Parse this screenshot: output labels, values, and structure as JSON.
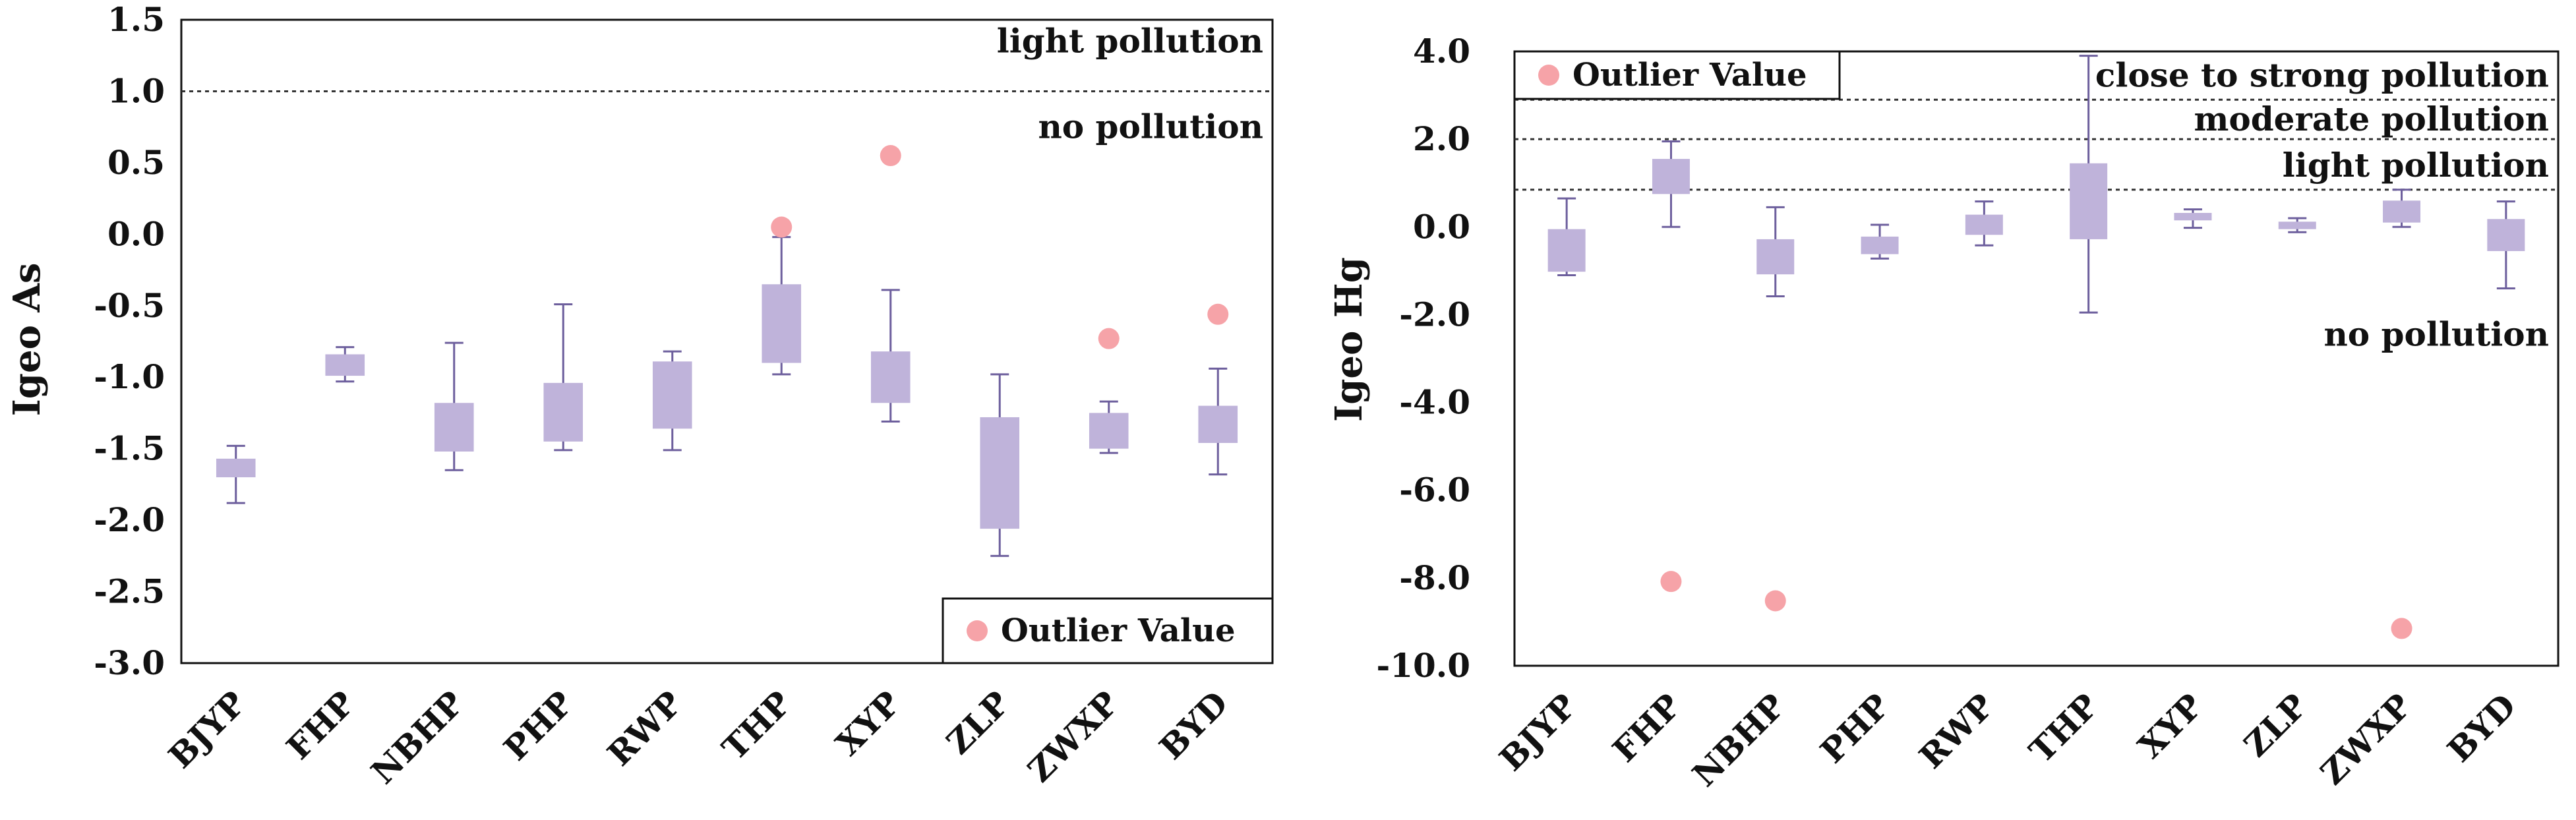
{
  "colors": {
    "box": "#bfb3da",
    "whisker": "#6d5f9d",
    "outlier": "#f6a3a8",
    "frame": "#111111",
    "threshold": "#333333"
  },
  "chart_data": [
    {
      "type": "box",
      "ylabel": "Igeo  As",
      "ylim": [
        -3.0,
        1.5
      ],
      "yticks": [
        "1.5",
        "1.0",
        "0.5",
        "0.0",
        "-0.5",
        "-1.0",
        "-1.5",
        "-2.0",
        "-2.5",
        "-3.0"
      ],
      "ytick_values": [
        1.5,
        1.0,
        0.5,
        0.0,
        -0.5,
        -1.0,
        -1.5,
        -2.0,
        -2.5,
        -3.0
      ],
      "categories": [
        "BJYP",
        "FHP",
        "NBHP",
        "PHP",
        "RWP",
        "THP",
        "XYP",
        "ZLP",
        "ZWXP",
        "BYD"
      ],
      "boxes": [
        {
          "whisker_low": -1.88,
          "q1": -1.7,
          "q3": -1.57,
          "whisker_high": -1.48
        },
        {
          "whisker_low": -1.03,
          "q1": -0.99,
          "q3": -0.84,
          "whisker_high": -0.79
        },
        {
          "whisker_low": -1.65,
          "q1": -1.52,
          "q3": -1.18,
          "whisker_high": -0.76
        },
        {
          "whisker_low": -1.51,
          "q1": -1.45,
          "q3": -1.04,
          "whisker_high": -0.49
        },
        {
          "whisker_low": -1.51,
          "q1": -1.36,
          "q3": -0.89,
          "whisker_high": -0.82
        },
        {
          "whisker_low": -0.98,
          "q1": -0.9,
          "q3": -0.35,
          "whisker_high": -0.02
        },
        {
          "whisker_low": -1.31,
          "q1": -1.18,
          "q3": -0.82,
          "whisker_high": -0.39
        },
        {
          "whisker_low": -2.25,
          "q1": -2.06,
          "q3": -1.28,
          "whisker_high": -0.98
        },
        {
          "whisker_low": -1.53,
          "q1": -1.5,
          "q3": -1.25,
          "whisker_high": -1.17
        },
        {
          "whisker_low": -1.68,
          "q1": -1.46,
          "q3": -1.2,
          "whisker_high": -0.94
        }
      ],
      "outliers": [
        {
          "category": "THP",
          "value": 0.05
        },
        {
          "category": "XYP",
          "value": 0.55
        },
        {
          "category": "ZWXP",
          "value": -0.73
        },
        {
          "category": "BYD",
          "value": -0.56
        }
      ],
      "thresholds": [
        {
          "value": 1.0
        }
      ],
      "zone_labels": [
        {
          "text": "light pollution",
          "value": 1.35
        },
        {
          "text": "no pollution",
          "value": 0.75
        }
      ],
      "legend": {
        "label": "Outlier Value",
        "position": "bottom-right"
      }
    },
    {
      "type": "box",
      "ylabel": "Igeo  Hg",
      "ylim": [
        -10.0,
        4.0
      ],
      "yticks": [
        "4.0",
        "2.0",
        "0.0",
        "-2.0",
        "-4.0",
        "-6.0",
        "-8.0",
        "-10.0"
      ],
      "ytick_values": [
        4.0,
        2.0,
        0.0,
        -2.0,
        -4.0,
        -6.0,
        -8.0,
        -10.0
      ],
      "categories": [
        "BJYP",
        "FHP",
        "NBHP",
        "PHP",
        "RWP",
        "THP",
        "XYP",
        "ZLP",
        "ZWXP",
        "BYD"
      ],
      "boxes": [
        {
          "whisker_low": -1.1,
          "q1": -1.02,
          "q3": -0.05,
          "whisker_high": 0.65
        },
        {
          "whisker_low": 0.0,
          "q1": 0.75,
          "q3": 1.55,
          "whisker_high": 1.95
        },
        {
          "whisker_low": -1.58,
          "q1": -1.08,
          "q3": -0.28,
          "whisker_high": 0.45
        },
        {
          "whisker_low": -0.72,
          "q1": -0.62,
          "q3": -0.22,
          "whisker_high": 0.05
        },
        {
          "whisker_low": -0.42,
          "q1": -0.18,
          "q3": 0.28,
          "whisker_high": 0.58
        },
        {
          "whisker_low": -1.95,
          "q1": -0.28,
          "q3": 1.45,
          "whisker_high": 3.9
        },
        {
          "whisker_low": -0.02,
          "q1": 0.15,
          "q3": 0.32,
          "whisker_high": 0.4
        },
        {
          "whisker_low": -0.12,
          "q1": -0.05,
          "q3": 0.12,
          "whisker_high": 0.2
        },
        {
          "whisker_low": 0.0,
          "q1": 0.1,
          "q3": 0.6,
          "whisker_high": 0.85
        },
        {
          "whisker_low": -1.4,
          "q1": -0.55,
          "q3": 0.18,
          "whisker_high": 0.58
        }
      ],
      "outliers": [
        {
          "category": "FHP",
          "value": -8.08
        },
        {
          "category": "NBHP",
          "value": -8.52
        },
        {
          "category": "ZWXP",
          "value": -9.15
        }
      ],
      "thresholds": [
        {
          "value": 0.85
        },
        {
          "value": 2.0
        },
        {
          "value": 2.9
        }
      ],
      "zone_labels": [
        {
          "text": "close to strong pollution",
          "value": 3.45
        },
        {
          "text": "moderate pollution",
          "value": 2.45
        },
        {
          "text": "light pollution",
          "value": 1.4
        },
        {
          "text": "no pollution",
          "value": -2.45
        }
      ],
      "legend": {
        "label": "Outlier Value",
        "position": "top-left"
      }
    }
  ]
}
